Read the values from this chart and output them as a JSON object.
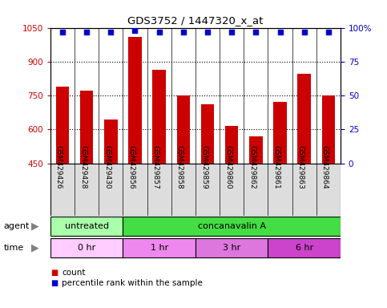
{
  "title": "GDS3752 / 1447320_x_at",
  "samples": [
    "GSM429426",
    "GSM429428",
    "GSM429430",
    "GSM429856",
    "GSM429857",
    "GSM429858",
    "GSM429859",
    "GSM429860",
    "GSM429862",
    "GSM429861",
    "GSM429863",
    "GSM429864"
  ],
  "counts": [
    790,
    770,
    645,
    1010,
    865,
    750,
    710,
    615,
    570,
    720,
    845,
    750
  ],
  "percentile_ranks": [
    97,
    97,
    97,
    98,
    97,
    97,
    97,
    97,
    97,
    97,
    97,
    97
  ],
  "ylim_left": [
    450,
    1050
  ],
  "ylim_right": [
    0,
    100
  ],
  "yticks_left": [
    450,
    600,
    750,
    900,
    1050
  ],
  "yticks_right": [
    0,
    25,
    50,
    75,
    100
  ],
  "bar_color": "#cc0000",
  "dot_color": "#0000cc",
  "agent_groups": [
    {
      "label": "untreated",
      "start": 0,
      "end": 3,
      "color": "#aaffaa"
    },
    {
      "label": "concanavalin A",
      "start": 3,
      "end": 12,
      "color": "#44dd44"
    }
  ],
  "time_groups": [
    {
      "label": "0 hr",
      "start": 0,
      "end": 3,
      "color": "#ffccff"
    },
    {
      "label": "1 hr",
      "start": 3,
      "end": 6,
      "color": "#ee88ee"
    },
    {
      "label": "3 hr",
      "start": 6,
      "end": 9,
      "color": "#dd77dd"
    },
    {
      "label": "6 hr",
      "start": 9,
      "end": 12,
      "color": "#cc44cc"
    }
  ],
  "label_agent": "agent",
  "label_time": "time",
  "legend_count_color": "#cc0000",
  "legend_dot_color": "#0000cc",
  "grid_color": "#000000",
  "tick_label_color_left": "#cc0000",
  "tick_label_color_right": "#0000cc",
  "bar_width": 0.55,
  "sample_box_color": "#dddddd",
  "background_color": "#ffffff"
}
